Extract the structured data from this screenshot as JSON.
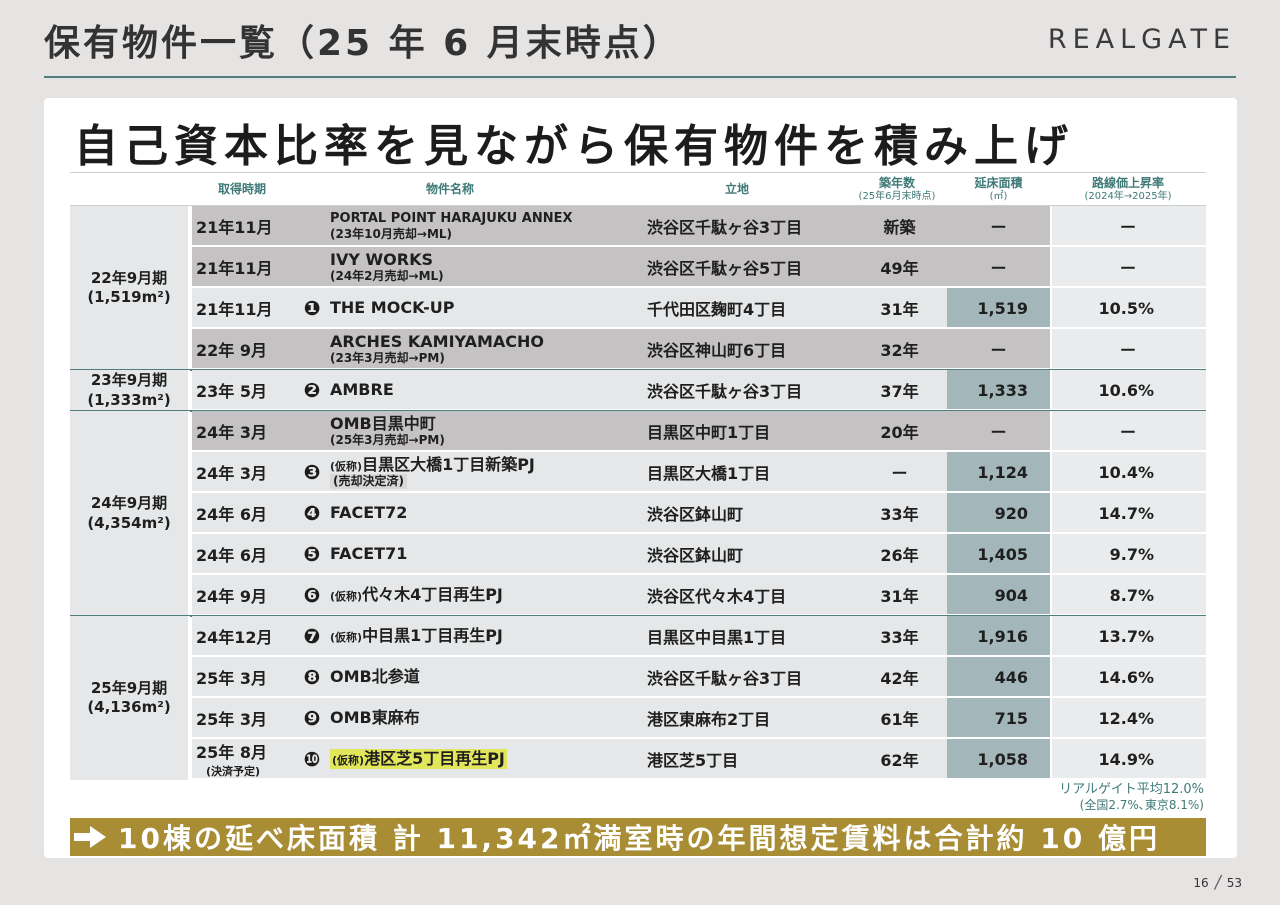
{
  "page": {
    "title": "保有物件一覧（25 年 6 月末時点）",
    "logo": "REALGATE",
    "headline": "自己資本比率を見ながら保有物件を積み上げ",
    "page_current": "16",
    "page_total": "53"
  },
  "table": {
    "headers": {
      "date": "取得時期",
      "name": "物件名称",
      "location": "立地",
      "age": "築年数",
      "age_sub": "(25年6月末時点)",
      "area": "延床面積",
      "area_sub": "(㎡)",
      "rate": "路線価上昇率",
      "rate_sub": "(2024年→2025年)"
    },
    "groups": [
      {
        "label": "22年9月期",
        "sub": "(1,519m²)",
        "rows": [
          {
            "date": "21年11月",
            "num": "",
            "name": "PORTAL POINT HARAJUKU ANNEX",
            "name_sub": "(23年10月売却→ML)",
            "location": "渋谷区千駄ヶ谷3丁目",
            "age": "新築",
            "area": "ー",
            "rate": "ー",
            "sold": true
          },
          {
            "date": "21年11月",
            "num": "",
            "name": "IVY WORKS",
            "name_sub": "(24年2月売却→ML)",
            "location": "渋谷区千駄ヶ谷5丁目",
            "age": "49年",
            "area": "ー",
            "rate": "ー",
            "sold": true
          },
          {
            "date": "21年11月",
            "num": "1",
            "name": "THE MOCK-UP",
            "name_sub": "",
            "location": "千代田区麹町4丁目",
            "age": "31年",
            "area": "1,519",
            "rate": "10.5%",
            "sold": false
          },
          {
            "date": "22年 9月",
            "num": "",
            "name": "ARCHES KAMIYAMACHO",
            "name_sub": "(23年3月売却→PM)",
            "location": "渋谷区神山町6丁目",
            "age": "32年",
            "area": "ー",
            "rate": "ー",
            "sold": true
          }
        ]
      },
      {
        "label": "23年9月期",
        "sub": "(1,333m²)",
        "rows": [
          {
            "date": "23年 5月",
            "num": "2",
            "name": "AMBRE",
            "name_sub": "",
            "location": "渋谷区千駄ヶ谷3丁目",
            "age": "37年",
            "area": "1,333",
            "rate": "10.6%",
            "sold": false
          }
        ]
      },
      {
        "label": "24年9月期",
        "sub": "(4,354m²)",
        "rows": [
          {
            "date": "24年 3月",
            "num": "",
            "name": "OMB目黒中町",
            "name_sub": "(25年3月売却→PM)",
            "location": "目黒区中町1丁目",
            "age": "20年",
            "area": "ー",
            "rate": "ー",
            "sold": true
          },
          {
            "date": "24年 3月",
            "num": "3",
            "kari": "(仮称)",
            "name": "目黒区大橋1丁目新築PJ",
            "name_sub": "(売却決定済)",
            "location": "目黒区大橋1丁目",
            "age": "ー",
            "area": "1,124",
            "rate": "10.4%",
            "sold": false
          },
          {
            "date": "24年 6月",
            "num": "4",
            "name": "FACET72",
            "name_sub": "",
            "location": "渋谷区鉢山町",
            "age": "33年",
            "area": "920",
            "rate": "14.7%",
            "sold": false
          },
          {
            "date": "24年 6月",
            "num": "5",
            "name": "FACET71",
            "name_sub": "",
            "location": "渋谷区鉢山町",
            "age": "26年",
            "area": "1,405",
            "rate": "9.7%",
            "sold": false
          },
          {
            "date": "24年 9月",
            "num": "6",
            "kari": "(仮称)",
            "name": "代々木4丁目再生PJ",
            "name_sub": "",
            "location": "渋谷区代々木4丁目",
            "age": "31年",
            "area": "904",
            "rate": "8.7%",
            "sold": false
          }
        ]
      },
      {
        "label": "25年9月期",
        "sub": "(4,136m²)",
        "rows": [
          {
            "date": "24年12月",
            "num": "7",
            "kari": "(仮称)",
            "name": "中目黒1丁目再生PJ",
            "name_sub": "",
            "location": "目黒区中目黒1丁目",
            "age": "33年",
            "area": "1,916",
            "rate": "13.7%",
            "sold": false
          },
          {
            "date": "25年 3月",
            "num": "8",
            "name": "OMB北参道",
            "name_sub": "",
            "location": "渋谷区千駄ヶ谷3丁目",
            "age": "42年",
            "area": "446",
            "rate": "14.6%",
            "sold": false
          },
          {
            "date": "25年 3月",
            "num": "9",
            "name": "OMB東麻布",
            "name_sub": "",
            "location": "港区東麻布2丁目",
            "age": "61年",
            "area": "715",
            "rate": "12.4%",
            "sold": false
          },
          {
            "date": "25年 8月",
            "date_note": "(決済予定)",
            "num": "10",
            "kari": "(仮称)",
            "name": "港区芝5丁目再生PJ",
            "name_sub": "",
            "location": "港区芝5丁目",
            "age": "62年",
            "area": "1,058",
            "rate": "14.9%",
            "sold": false,
            "highlight": true
          }
        ]
      }
    ]
  },
  "average": {
    "line1": "リアルゲイト平均12.0%",
    "line2": "(全国2.7%､東京8.1%)"
  },
  "banner": {
    "text": "10棟の延べ床面積 計 11,342㎡満室時の年間想定賃料は合計約 10 億円"
  },
  "colors": {
    "accent": "#4f7f7d",
    "header_text": "#3f7a78",
    "sold_row": "#c5c2c4",
    "area_column": "#a3b7bb",
    "banner": "#a88d34",
    "highlight": "#e1e65a"
  }
}
